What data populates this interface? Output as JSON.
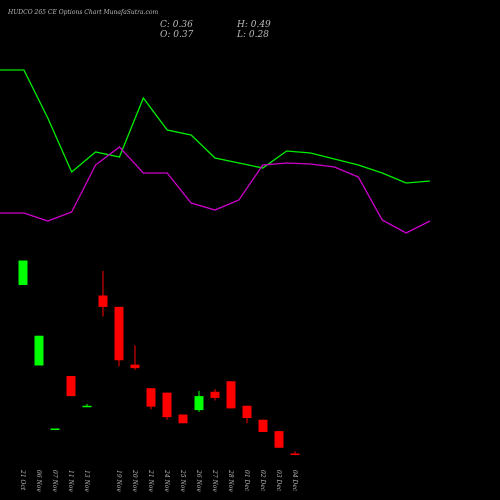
{
  "chart_data": [
    {
      "type": "candlestick",
      "title": "HUDCO 265 CE Options  Chart MunafaSutra.com",
      "summary": {
        "close": "C: 0.36",
        "high": "H: 0.49",
        "open": "O: 0.37",
        "low": "L: 0.28"
      },
      "categories": [
        "21 Oct",
        "06 Nov",
        "07 Nov",
        "11 Nov",
        "13 Nov",
        null,
        "19 Nov",
        "20 Nov",
        "21 Nov",
        "24 Nov",
        "25 Nov",
        "26 Nov",
        "27 Nov",
        "28 Nov",
        "01 Dec",
        "02 Dec",
        "03 Dec",
        "04 Dec"
      ],
      "open": [
        10.0,
        5.4,
        1.8,
        4.8,
        3.1,
        9.4,
        8.75,
        5.45,
        4.1,
        3.85,
        2.6,
        2.85,
        3.9,
        4.5,
        3.1,
        2.3,
        1.65,
        0.37
      ],
      "high": [
        11.4,
        7.1,
        1.8,
        4.8,
        3.2,
        10.8,
        8.75,
        6.55,
        4.1,
        3.85,
        2.6,
        3.95,
        4.05,
        4.5,
        3.1,
        2.3,
        1.65,
        0.49
      ],
      "low": [
        10.0,
        5.4,
        1.75,
        3.65,
        3.05,
        8.2,
        5.35,
        5.15,
        2.9,
        2.3,
        2.1,
        2.75,
        3.4,
        2.95,
        2.1,
        1.6,
        0.7,
        0.28
      ],
      "close": [
        11.4,
        7.1,
        1.8,
        3.65,
        3.1,
        8.75,
        5.7,
        5.25,
        3.05,
        2.45,
        2.1,
        3.65,
        3.55,
        2.95,
        2.4,
        1.6,
        0.7,
        0.36
      ],
      "up_color": "#00ff00",
      "down_color": "#ff0000",
      "ylim": [
        0,
        12
      ]
    },
    {
      "type": "line",
      "x": [
        0,
        1,
        2,
        3,
        4,
        5,
        6,
        7,
        8,
        9,
        10,
        11,
        12,
        13,
        14,
        15,
        16,
        17,
        18
      ],
      "xlim": [
        0,
        18
      ],
      "ylim": [
        0,
        100
      ],
      "series": [
        {
          "color": "#00ee00",
          "values": [
            72,
            72,
            52.8,
            31.2,
            39.2,
            37.2,
            60.8,
            48,
            46,
            36.8,
            34.8,
            32.8,
            39.6,
            38.8,
            36.4,
            34,
            30.8,
            26.8,
            27.6
          ]
        },
        {
          "color": "#cc00cc",
          "values": [
            14.8,
            14.8,
            11.6,
            15.2,
            34,
            41.2,
            30.8,
            30.8,
            18.8,
            16,
            20,
            34,
            34.8,
            34.4,
            33.2,
            29.2,
            12,
            6.8,
            11.6
          ]
        }
      ]
    }
  ]
}
